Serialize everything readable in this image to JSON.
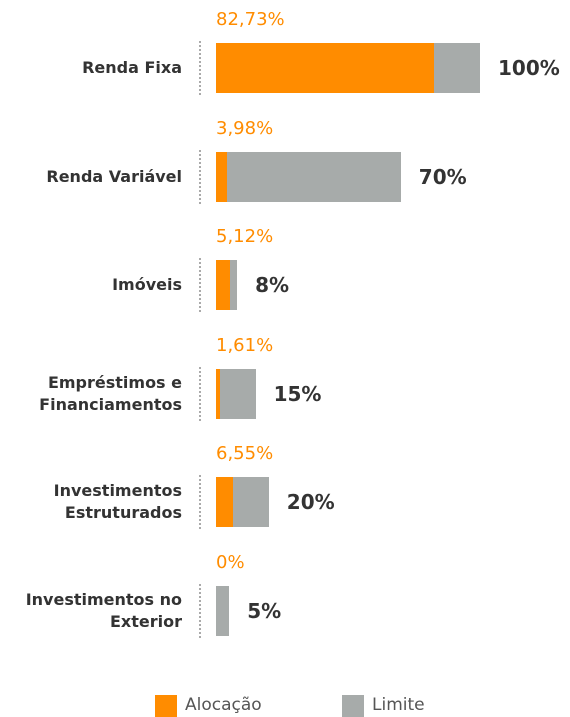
{
  "chart_data": {
    "type": "bar",
    "orientation": "horizontal",
    "overlap": true,
    "categories": [
      "Renda Fixa",
      "Renda Variável",
      "Imóveis",
      "Empréstimos e Financiamentos",
      "Investimentos Estruturados",
      "Investimentos no Exterior"
    ],
    "series": [
      {
        "name": "Alocação",
        "color": "#ff8c00",
        "values": [
          82.73,
          3.98,
          5.12,
          1.61,
          6.55,
          0
        ],
        "value_labels": [
          "82,73%",
          "3,98%",
          "5,12%",
          "1,61%",
          "6,55%",
          "0%"
        ]
      },
      {
        "name": "Limite",
        "color": "#a7abaa",
        "values": [
          100,
          70,
          8,
          15,
          20,
          5
        ],
        "value_labels": [
          "100%",
          "70%",
          "8%",
          "15%",
          "20%",
          "5%"
        ]
      }
    ],
    "xlim": [
      0,
      100
    ]
  }
}
